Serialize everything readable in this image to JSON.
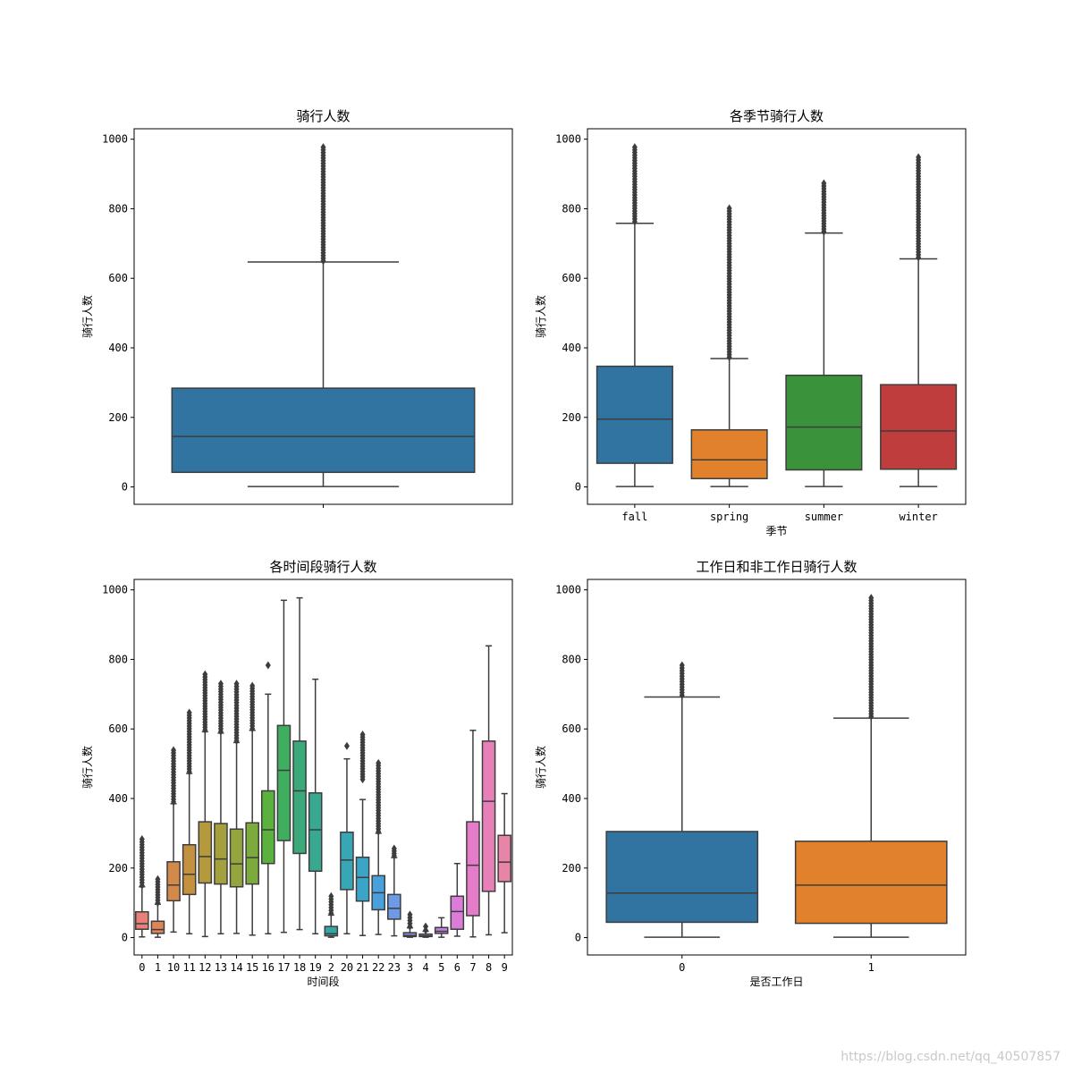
{
  "watermark": "https://blog.csdn.net/qq_40507857",
  "colors": {
    "blue": "#3274a1",
    "orange": "#e1812c",
    "green": "#3a923a",
    "red": "#c03d3e",
    "line": "#3d3d3d",
    "frame": "#000000"
  },
  "chart_data": [
    {
      "type": "box",
      "id": "overall",
      "title": "骑行人数",
      "xlabel": "",
      "ylabel": "骑行人数",
      "ylim": [
        -50,
        1030
      ],
      "yticks": [
        0,
        200,
        400,
        600,
        800,
        1000
      ],
      "show_xticklabels": false,
      "categories": [
        ""
      ],
      "boxes": [
        {
          "min": 1,
          "q1": 42,
          "median": 145,
          "q3": 284,
          "whisker_high": 647,
          "outliers_from": 650,
          "outliers_to": 977,
          "color": "#3274a1"
        }
      ]
    },
    {
      "type": "box",
      "id": "season",
      "title": "各季节骑行人数",
      "xlabel": "季节",
      "ylabel": "骑行人数",
      "ylim": [
        -50,
        1030
      ],
      "yticks": [
        0,
        200,
        400,
        600,
        800,
        1000
      ],
      "show_xticklabels": true,
      "categories": [
        "fall",
        "spring",
        "summer",
        "winter"
      ],
      "boxes": [
        {
          "min": 1,
          "q1": 68,
          "median": 195,
          "q3": 347,
          "whisker_high": 758,
          "outliers_from": 763,
          "outliers_to": 977,
          "color": "#3274a1"
        },
        {
          "min": 1,
          "q1": 24,
          "median": 78,
          "q3": 164,
          "whisker_high": 369,
          "outliers_from": 373,
          "outliers_to": 801,
          "color": "#e1812c"
        },
        {
          "min": 1,
          "q1": 49,
          "median": 172,
          "q3": 321,
          "whisker_high": 730,
          "outliers_from": 734,
          "outliers_to": 873,
          "color": "#3a923a"
        },
        {
          "min": 1,
          "q1": 51,
          "median": 161,
          "q3": 294,
          "whisker_high": 656,
          "outliers_from": 660,
          "outliers_to": 948,
          "color": "#c03d3e"
        }
      ]
    },
    {
      "type": "box",
      "id": "hour",
      "title": "各时间段骑行人数",
      "xlabel": "时间段",
      "ylabel": "骑行人数",
      "ylim": [
        -50,
        1030
      ],
      "yticks": [
        0,
        200,
        400,
        600,
        800,
        1000
      ],
      "show_xticklabels": true,
      "categories": [
        "0",
        "1",
        "10",
        "11",
        "12",
        "13",
        "14",
        "15",
        "16",
        "17",
        "18",
        "19",
        "2",
        "20",
        "21",
        "22",
        "23",
        "3",
        "4",
        "5",
        "6",
        "7",
        "8",
        "9"
      ],
      "boxes": [
        {
          "min": 2,
          "q1": 24,
          "median": 40,
          "q3": 74,
          "whisker_high": 146,
          "outliers_from": 150,
          "outliers_to": 283,
          "color": "#e8807a"
        },
        {
          "min": 1,
          "q1": 12,
          "median": 23,
          "q3": 47,
          "whisker_high": 96,
          "outliers_from": 100,
          "outliers_to": 168,
          "color": "#e0835a"
        },
        {
          "min": 16,
          "q1": 106,
          "median": 151,
          "q3": 218,
          "whisker_high": 385,
          "outliers_from": 390,
          "outliers_to": 539,
          "color": "#d2894c"
        },
        {
          "min": 11,
          "q1": 124,
          "median": 182,
          "q3": 267,
          "whisker_high": 472,
          "outliers_from": 477,
          "outliers_to": 647,
          "color": "#c49140"
        },
        {
          "min": 3,
          "q1": 157,
          "median": 233,
          "q3": 333,
          "whisker_high": 592,
          "outliers_from": 597,
          "outliers_to": 757,
          "color": "#b49a3c"
        },
        {
          "min": 11,
          "q1": 154,
          "median": 226,
          "q3": 328,
          "whisker_high": 588,
          "outliers_from": 593,
          "outliers_to": 730,
          "color": "#a5a03e"
        },
        {
          "min": 12,
          "q1": 146,
          "median": 212,
          "q3": 312,
          "whisker_high": 561,
          "outliers_from": 566,
          "outliers_to": 730,
          "color": "#94a53e"
        },
        {
          "min": 7,
          "q1": 154,
          "median": 230,
          "q3": 330,
          "whisker_high": 596,
          "outliers_from": 601,
          "outliers_to": 724,
          "color": "#7bab3c"
        },
        {
          "min": 11,
          "q1": 213,
          "median": 310,
          "q3": 422,
          "whisker_high": 700,
          "outliers_from": 783,
          "outliers_to": 783,
          "color": "#5ab13d"
        },
        {
          "min": 15,
          "q1": 279,
          "median": 481,
          "q3": 610,
          "whisker_high": 970,
          "outliers_from": null,
          "outliers_to": null,
          "color": "#3fae5e"
        },
        {
          "min": 23,
          "q1": 242,
          "median": 422,
          "q3": 565,
          "whisker_high": 977,
          "outliers_from": null,
          "outliers_to": null,
          "color": "#3aaa7b"
        },
        {
          "min": 11,
          "q1": 191,
          "median": 310,
          "q3": 416,
          "whisker_high": 743,
          "outliers_from": null,
          "outliers_to": null,
          "color": "#38a891"
        },
        {
          "min": 1,
          "q1": 5,
          "median": 11,
          "q3": 32,
          "whisker_high": 65,
          "outliers_from": 70,
          "outliers_to": 119,
          "color": "#36a6a2"
        },
        {
          "min": 11,
          "q1": 138,
          "median": 223,
          "q3": 303,
          "whisker_high": 514,
          "outliers_from": 551,
          "outliers_to": 551,
          "color": "#38a6b5"
        },
        {
          "min": 6,
          "q1": 105,
          "median": 173,
          "q3": 231,
          "whisker_high": 397,
          "outliers_from": 455,
          "outliers_to": 584,
          "color": "#3ba5c8"
        },
        {
          "min": 9,
          "q1": 80,
          "median": 129,
          "q3": 178,
          "whisker_high": 300,
          "outliers_from": 305,
          "outliers_to": 502,
          "color": "#48a0dd"
        },
        {
          "min": 5,
          "q1": 53,
          "median": 84,
          "q3": 124,
          "whisker_high": 230,
          "outliers_from": 235,
          "outliers_to": 256,
          "color": "#6d9ae6"
        },
        {
          "min": 1,
          "q1": 3,
          "median": 6,
          "q3": 14,
          "whisker_high": 28,
          "outliers_from": 32,
          "outliers_to": 66,
          "color": "#8a91e8"
        },
        {
          "min": 1,
          "q1": 3,
          "median": 5,
          "q3": 10,
          "whisker_high": 18,
          "outliers_from": 21,
          "outliers_to": 32,
          "color": "#a889e2"
        },
        {
          "min": 1,
          "q1": 12,
          "median": 18,
          "q3": 29,
          "whisker_high": 57,
          "outliers_from": null,
          "outliers_to": null,
          "color": "#c281dc"
        },
        {
          "min": 4,
          "q1": 24,
          "median": 75,
          "q3": 119,
          "whisker_high": 213,
          "outliers_from": null,
          "outliers_to": null,
          "color": "#db7cd8"
        },
        {
          "min": 2,
          "q1": 63,
          "median": 208,
          "q3": 333,
          "whisker_high": 596,
          "outliers_from": null,
          "outliers_to": null,
          "color": "#e57cc9"
        },
        {
          "min": 8,
          "q1": 133,
          "median": 392,
          "q3": 565,
          "whisker_high": 839,
          "outliers_from": null,
          "outliers_to": null,
          "color": "#e77fb8"
        },
        {
          "min": 14,
          "q1": 161,
          "median": 217,
          "q3": 294,
          "whisker_high": 414,
          "outliers_from": null,
          "outliers_to": null,
          "color": "#e884a7"
        }
      ]
    },
    {
      "type": "box",
      "id": "workingday",
      "title": "工作日和非工作日骑行人数",
      "xlabel": "是否工作日",
      "ylabel": "骑行人数",
      "ylim": [
        -50,
        1030
      ],
      "yticks": [
        0,
        200,
        400,
        600,
        800,
        1000
      ],
      "show_xticklabels": true,
      "categories": [
        "0",
        "1"
      ],
      "boxes": [
        {
          "min": 1,
          "q1": 44,
          "median": 128,
          "q3": 305,
          "whisker_high": 692,
          "outliers_from": 697,
          "outliers_to": 783,
          "color": "#3274a1"
        },
        {
          "min": 1,
          "q1": 41,
          "median": 151,
          "q3": 277,
          "whisker_high": 631,
          "outliers_from": 636,
          "outliers_to": 977,
          "color": "#e1812c"
        }
      ]
    }
  ]
}
